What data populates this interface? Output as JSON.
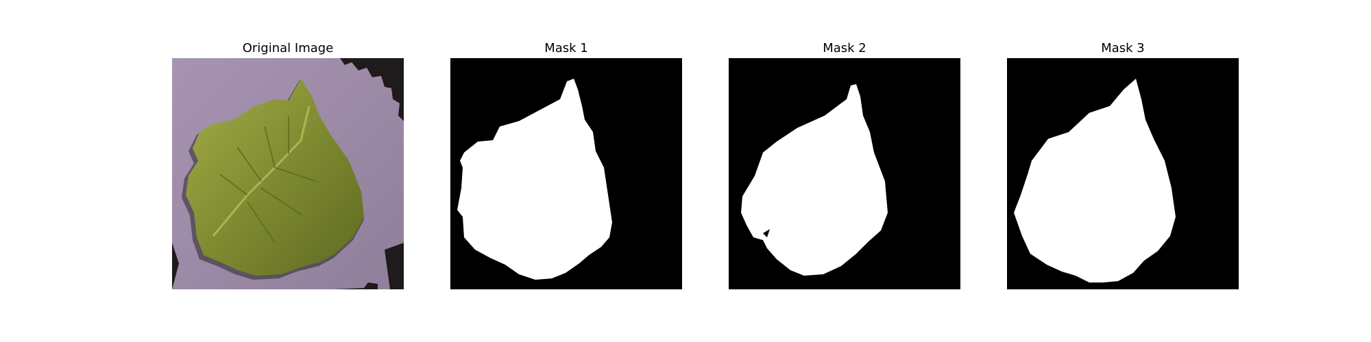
{
  "panels": [
    {
      "title": "Original Image",
      "content": "photo"
    },
    {
      "title": "Mask 1",
      "content": "mask"
    },
    {
      "title": "Mask 2",
      "content": "mask"
    },
    {
      "title": "Mask 3",
      "content": "mask"
    }
  ],
  "colors": {
    "background": "#ffffff",
    "mask_background": "#000000",
    "mask_foreground": "#ffffff",
    "leaf": "#7d8a2e",
    "cloth": "#9c8aa6",
    "shadow": "#1f1a1c"
  }
}
